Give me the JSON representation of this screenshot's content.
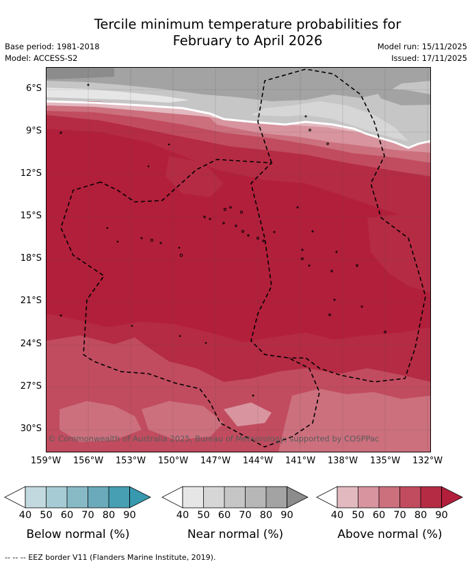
{
  "header": {
    "title_line1": "Tercile minimum temperature probabilities for",
    "title_line2": "February to April 2026",
    "base_period": "Base period: 1981-2018",
    "model": "Model: ACCESS-S2",
    "model_run": "Model run: 15/11/2025",
    "issued": "Issued: 17/11/2025"
  },
  "map": {
    "latitude_labels": [
      "6°S",
      "9°S",
      "12°S",
      "15°S",
      "18°S",
      "21°S",
      "24°S",
      "27°S",
      "30°S"
    ],
    "longitude_labels": [
      "159°W",
      "156°W",
      "153°W",
      "150°W",
      "147°W",
      "144°W",
      "141°W",
      "138°W",
      "135°W",
      "132°W"
    ],
    "copyright": "© Commonwealth of Australia 2025, Bureau of Meteorology, supported by COSPPac",
    "colors": {
      "above_40": "#e3b9c0",
      "above_50": "#d8959f",
      "above_60": "#cc707e",
      "above_70": "#c14c5f",
      "above_80": "#b52b44",
      "above_90": "#b21f3b",
      "near_40": "#e6e6e6",
      "near_50": "#d6d6d6",
      "near_60": "#c6c6c6",
      "near_70": "#b7b7b7",
      "near_80": "#a3a3a3",
      "near_90": "#8c8c8c"
    }
  },
  "legend": {
    "ticks": [
      "40",
      "50",
      "60",
      "70",
      "80",
      "90"
    ],
    "below": {
      "title": "Below normal (%)",
      "colors": [
        "#c2d9df",
        "#a6cbd4",
        "#88bac6",
        "#6aaabb",
        "#479fb3",
        "#389aae"
      ]
    },
    "near": {
      "title": "Near normal (%)",
      "colors": [
        "#e6e6e6",
        "#d6d6d6",
        "#c6c6c6",
        "#b7b7b7",
        "#a3a3a3",
        "#8c8c8c"
      ]
    },
    "above": {
      "title": "Above normal (%)",
      "colors": [
        "#e3b9c0",
        "#d8959f",
        "#cc707e",
        "#c14c5f",
        "#b52b44",
        "#b21f3b"
      ]
    }
  },
  "footer": {
    "eez_legend_symbol": "-- -- --",
    "eez_legend_text": "EEZ border V11 (Flanders Marine Institute, 2019)."
  }
}
